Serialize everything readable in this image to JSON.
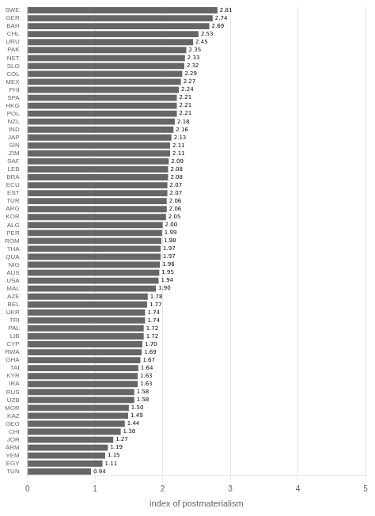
{
  "chart_data": {
    "type": "bar",
    "orientation": "horizontal",
    "categories": [
      "SWE",
      "GER",
      "BAH",
      "CHL",
      "URU",
      "PAK",
      "NET",
      "SLO",
      "COL",
      "MEX",
      "PHI",
      "SPA",
      "HKG",
      "POL",
      "NZL",
      "IND",
      "JAP",
      "SIN",
      "ZIM",
      "SAF",
      "LEB",
      "BRA",
      "ECU",
      "EST",
      "TUR",
      "ARG",
      "KOR",
      "ALG",
      "PER",
      "ROM",
      "THA",
      "QUA",
      "NIG",
      "AUS",
      "USA",
      "MAL",
      "AZE",
      "BEL",
      "UKR",
      "TRI",
      "PAL",
      "LIB",
      "CYP",
      "RWA",
      "GHA",
      "TAI",
      "KYR",
      "IRA",
      "RUS",
      "UZB",
      "MOR",
      "KAZ",
      "GEO",
      "CHI",
      "JOR",
      "ARM",
      "YEM",
      "EGY",
      "TUN"
    ],
    "values": [
      2.81,
      2.74,
      2.69,
      2.53,
      2.45,
      2.35,
      2.33,
      2.32,
      2.29,
      2.27,
      2.24,
      2.21,
      2.21,
      2.21,
      2.18,
      2.16,
      2.13,
      2.11,
      2.11,
      2.09,
      2.08,
      2.08,
      2.07,
      2.07,
      2.06,
      2.06,
      2.05,
      2.0,
      1.99,
      1.98,
      1.97,
      1.97,
      1.96,
      1.95,
      1.94,
      1.9,
      1.78,
      1.77,
      1.74,
      1.74,
      1.72,
      1.72,
      1.7,
      1.69,
      1.67,
      1.64,
      1.63,
      1.63,
      1.58,
      1.58,
      1.5,
      1.49,
      1.44,
      1.38,
      1.27,
      1.19,
      1.15,
      1.11,
      0.94
    ],
    "value_labels": [
      "2.81",
      "2.74",
      "2.69",
      "2.53",
      "2.45",
      "2.35",
      "2.33",
      "2.32",
      "2.29",
      "2.27",
      "2.24",
      "2.21",
      "2.21",
      "2.21",
      "2.18",
      "2.16",
      "2.13",
      "2.11",
      "2.11",
      "2.09",
      "2.08",
      "2.08",
      "2.07",
      "2.07",
      "2.06",
      "2.06",
      "2.05",
      "2.00",
      "1.99",
      "1.98",
      "1.97",
      "1.97",
      "1.96",
      "1.95",
      "1.94",
      "1.90",
      "1.78",
      "1.77",
      "1.74",
      "1.74",
      "1.72",
      "1.72",
      "1.70",
      "1.69",
      "1.67",
      "1.64",
      "1.63",
      "1.63",
      "1.58",
      "1.58",
      "1.50",
      "1.49",
      "1.44",
      "1.38",
      "1.27",
      "1.19",
      "1.15",
      "1.11",
      "0.94"
    ],
    "data_labels": true,
    "color": "#666666",
    "xlabel": "index of postmaterialism",
    "xlim": [
      0,
      5
    ],
    "xticks": [
      0,
      1,
      2,
      3,
      4,
      5
    ],
    "grid": true
  }
}
